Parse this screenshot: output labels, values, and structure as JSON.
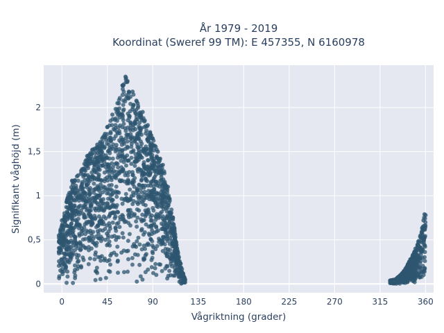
{
  "chart_data": {
    "type": "scatter",
    "title_line1": "År 1979 - 2019",
    "title_line2": "Koordinat (Sweref 99 TM): E 457355, N 6160978",
    "xlabel": "Vågriktning (grader)",
    "ylabel": "Signifikant våghöjd (m)",
    "xlim": [
      -18,
      368
    ],
    "ylim": [
      -0.1,
      2.48
    ],
    "xticks": [
      0,
      45,
      90,
      135,
      180,
      225,
      270,
      315,
      360
    ],
    "xtick_labels": [
      "0",
      "45",
      "90",
      "135",
      "180",
      "225",
      "270",
      "315",
      "360"
    ],
    "yticks": [
      0,
      0.5,
      1,
      1.5,
      2
    ],
    "ytick_labels": [
      "0",
      "0,5",
      "1",
      "1,5",
      "2"
    ],
    "grid": true,
    "marker_color": "#2e5570",
    "plot_background": "#e5e8f0",
    "envelope": [
      {
        "x": -3,
        "y": 0.55
      },
      {
        "x": 0,
        "y": 0.72
      },
      {
        "x": 5,
        "y": 0.95
      },
      {
        "x": 10,
        "y": 1.17
      },
      {
        "x": 15,
        "y": 1.22
      },
      {
        "x": 20,
        "y": 1.3
      },
      {
        "x": 25,
        "y": 1.45
      },
      {
        "x": 30,
        "y": 1.52
      },
      {
        "x": 35,
        "y": 1.58
      },
      {
        "x": 40,
        "y": 1.65
      },
      {
        "x": 45,
        "y": 1.78
      },
      {
        "x": 50,
        "y": 1.92
      },
      {
        "x": 55,
        "y": 2.05
      },
      {
        "x": 60,
        "y": 2.25
      },
      {
        "x": 63,
        "y": 2.35
      },
      {
        "x": 65,
        "y": 2.3
      },
      {
        "x": 70,
        "y": 2.18
      },
      {
        "x": 75,
        "y": 2.05
      },
      {
        "x": 80,
        "y": 1.95
      },
      {
        "x": 85,
        "y": 1.8
      },
      {
        "x": 90,
        "y": 1.65
      },
      {
        "x": 95,
        "y": 1.5
      },
      {
        "x": 100,
        "y": 1.35
      },
      {
        "x": 105,
        "y": 1.1
      },
      {
        "x": 110,
        "y": 0.75
      },
      {
        "x": 115,
        "y": 0.35
      },
      {
        "x": 120,
        "y": 0.12
      },
      {
        "x": 122,
        "y": 0.05
      },
      {
        "x": 325,
        "y": 0.04
      },
      {
        "x": 330,
        "y": 0.05
      },
      {
        "x": 335,
        "y": 0.1
      },
      {
        "x": 340,
        "y": 0.17
      },
      {
        "x": 345,
        "y": 0.28
      },
      {
        "x": 350,
        "y": 0.4
      },
      {
        "x": 355,
        "y": 0.55
      },
      {
        "x": 358,
        "y": 0.72
      },
      {
        "x": 359,
        "y": 0.79
      },
      {
        "x": 360,
        "y": 0.78
      }
    ]
  }
}
